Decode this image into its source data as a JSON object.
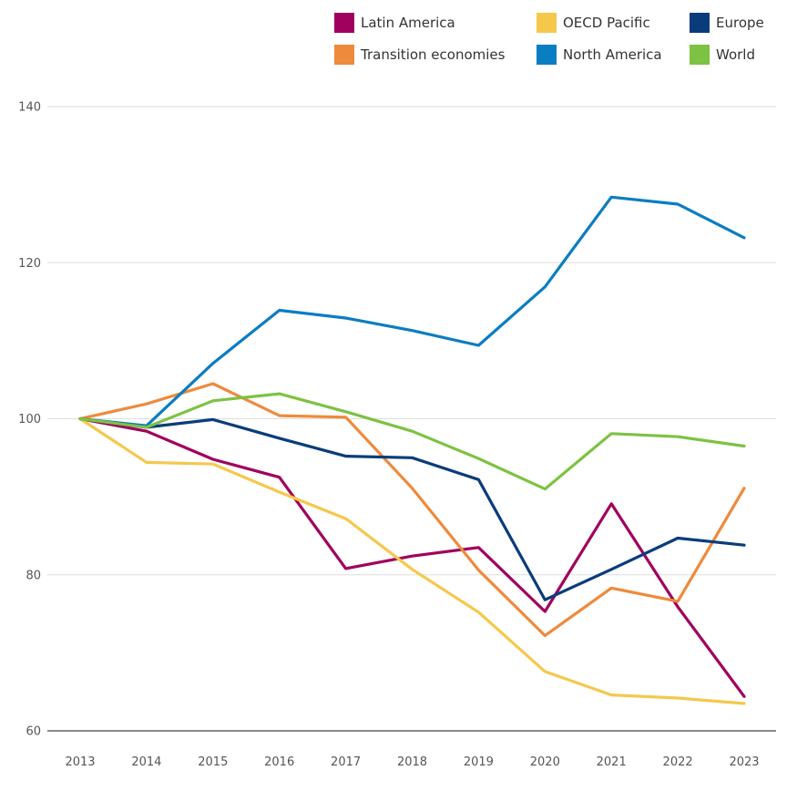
{
  "chart_data": {
    "type": "line",
    "title": "",
    "xlabel": "",
    "ylabel": "",
    "x": [
      "2013",
      "2014",
      "2015",
      "2016",
      "2017",
      "2018",
      "2019",
      "2020",
      "2021",
      "2022",
      "2023"
    ],
    "ylim": [
      60,
      140
    ],
    "yticks": [
      60,
      80,
      100,
      120,
      140
    ],
    "grid": true,
    "legend_position": "top",
    "series": [
      {
        "name": "Latin America",
        "color": "#A0005E",
        "values": [
          100,
          98.4,
          94.8,
          92.5,
          80.8,
          82.4,
          83.5,
          75.3,
          89.1,
          75.9,
          64.4
        ]
      },
      {
        "name": "Transition economies",
        "color": "#EE8A3B",
        "values": [
          100,
          101.9,
          104.5,
          100.4,
          100.2,
          91.1,
          80.6,
          72.2,
          78.3,
          76.6,
          91.1
        ]
      },
      {
        "name": "OECD Pacific",
        "color": "#F5C84C",
        "values": [
          100,
          94.4,
          94.2,
          90.6,
          87.2,
          80.7,
          75.2,
          67.6,
          64.6,
          64.2,
          63.5
        ]
      },
      {
        "name": "North America",
        "color": "#0B7DC2",
        "values": [
          100,
          99.1,
          107.1,
          113.9,
          112.9,
          111.3,
          109.4,
          116.9,
          128.4,
          127.5,
          123.2
        ]
      },
      {
        "name": "Europe",
        "color": "#0A3C7B",
        "values": [
          100,
          98.9,
          99.9,
          97.5,
          95.2,
          95.0,
          92.2,
          76.8,
          80.7,
          84.7,
          83.8
        ]
      },
      {
        "name": "World",
        "color": "#7DC242",
        "values": [
          100,
          98.9,
          102.3,
          103.2,
          100.9,
          98.4,
          94.9,
          91.0,
          98.1,
          97.7,
          96.5
        ]
      }
    ],
    "legend_order": [
      "Latin America",
      "OECD Pacific",
      "Europe",
      "Transition economies",
      "North America",
      "World"
    ]
  }
}
